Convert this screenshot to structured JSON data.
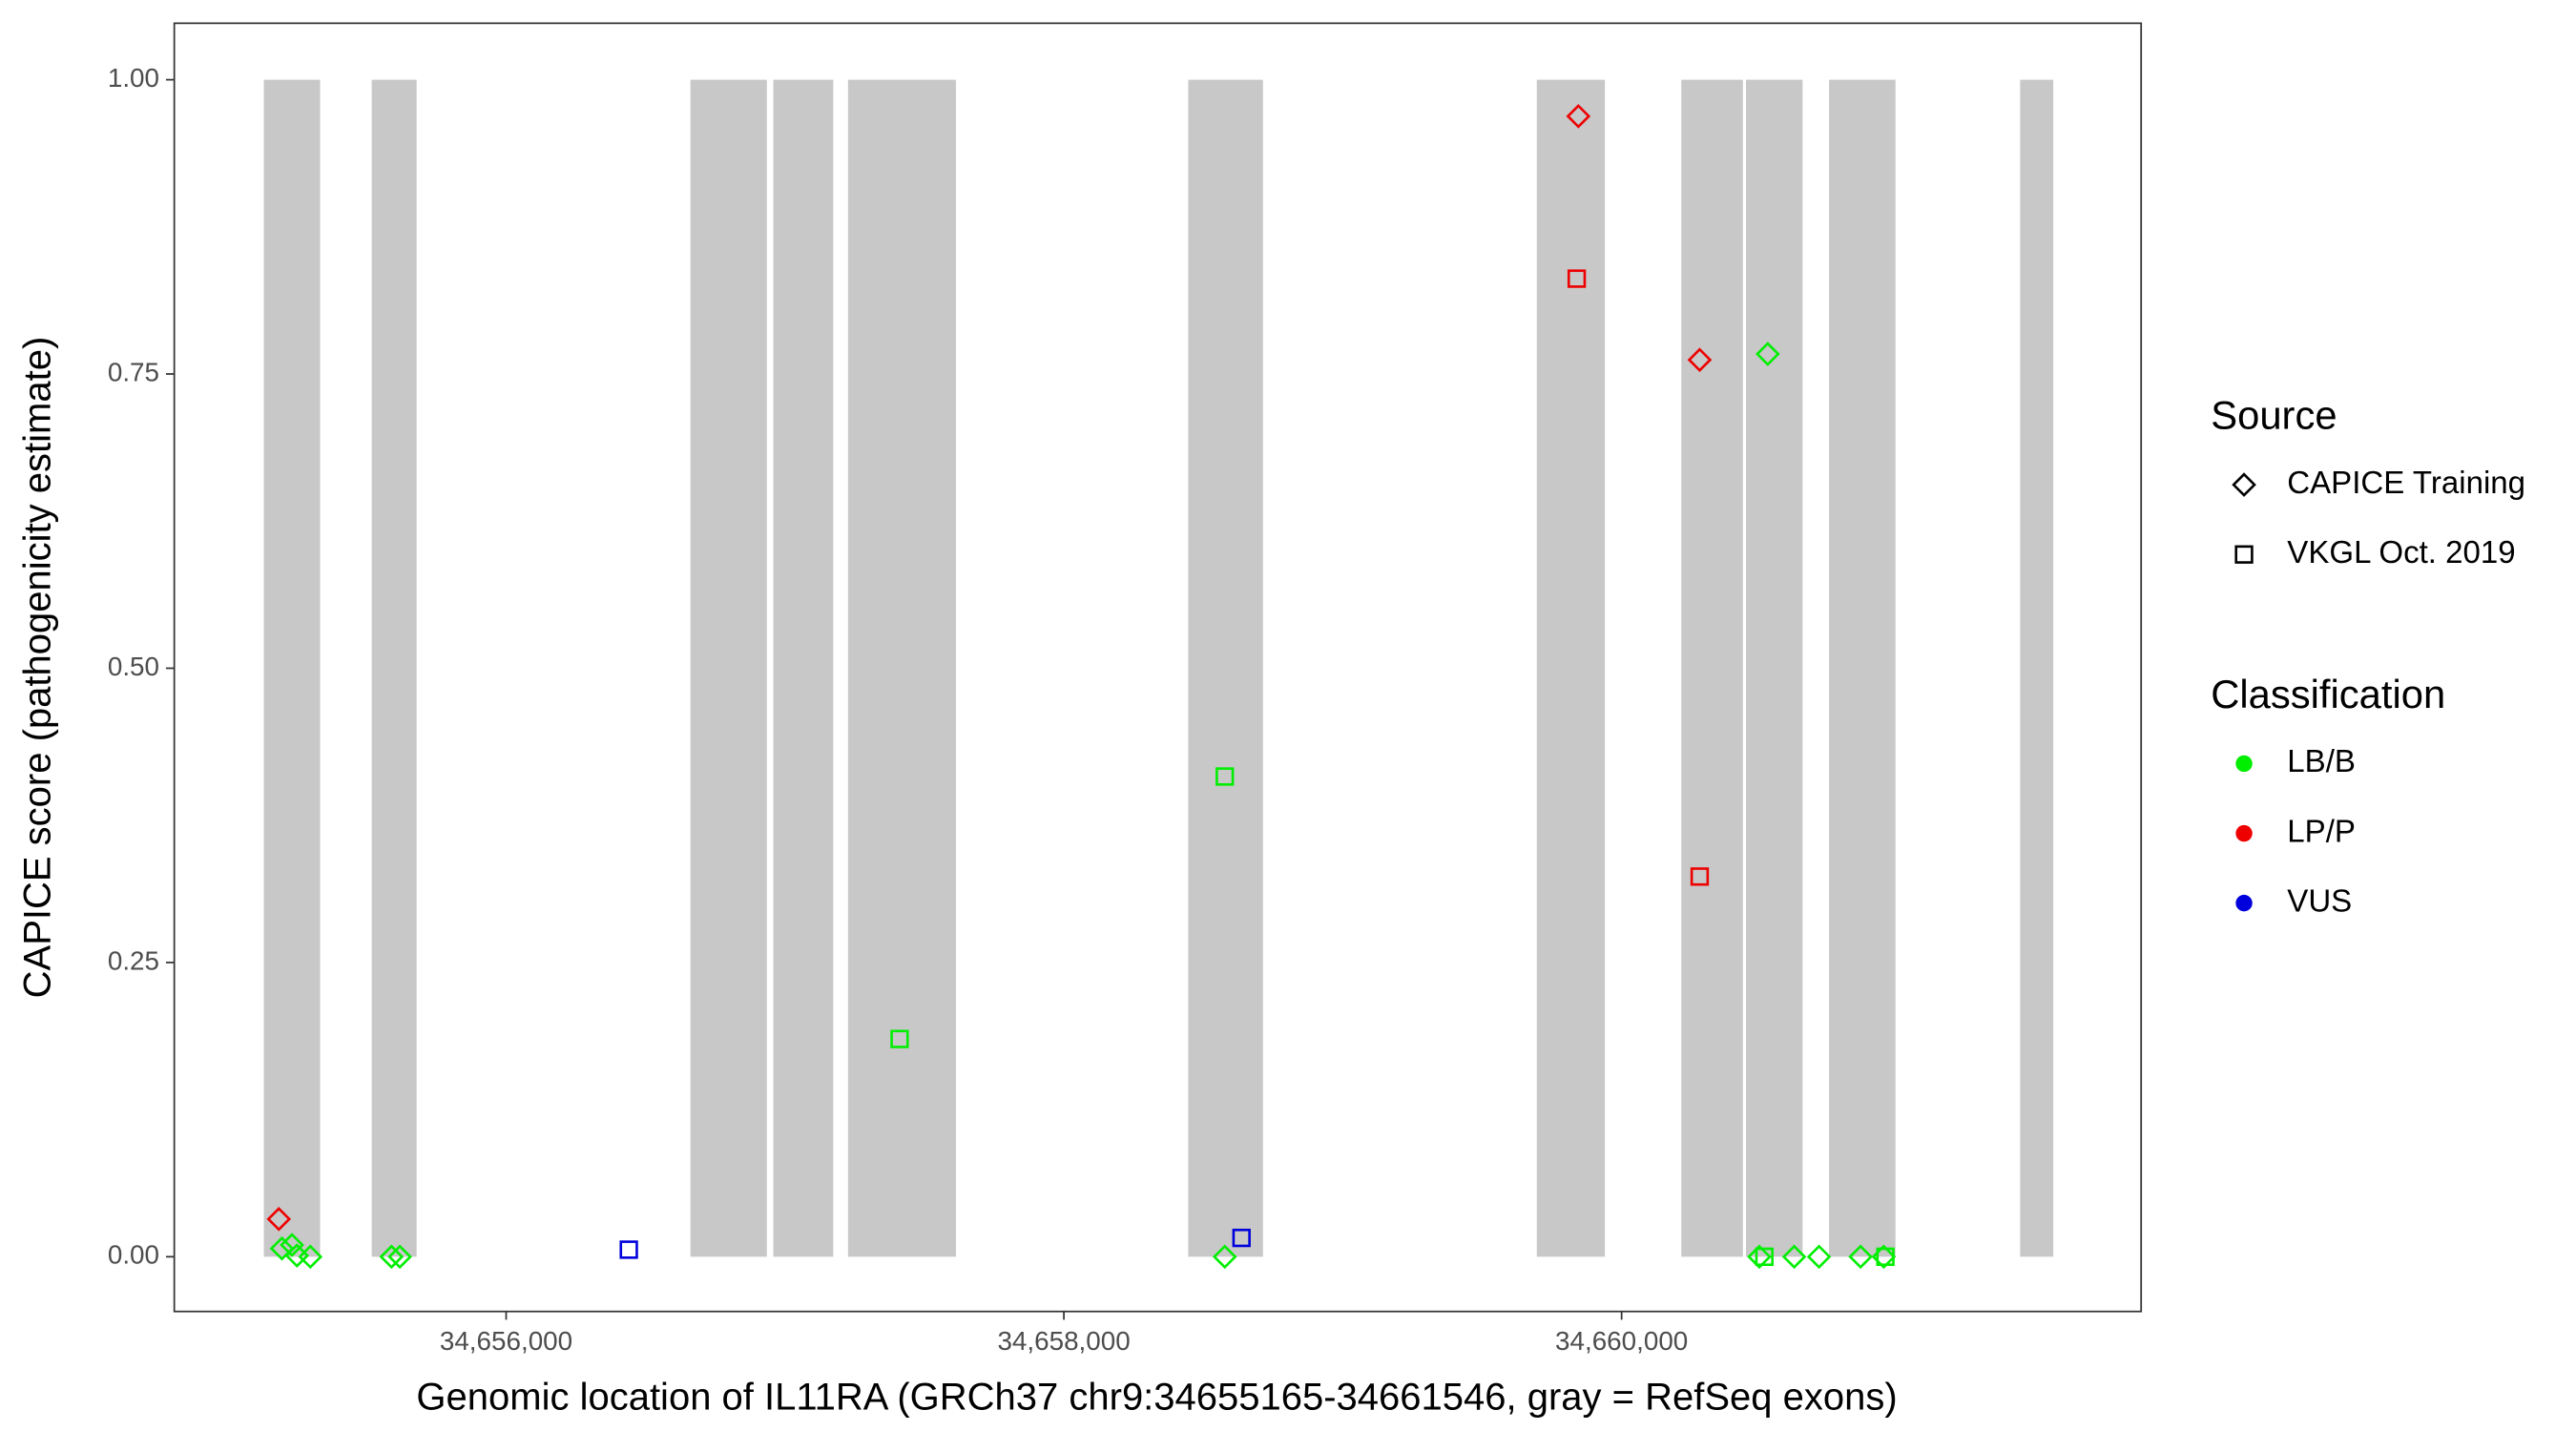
{
  "chart_data": {
    "type": "scatter",
    "x_label": "Genomic location of IL11RA (GRCh37 chr9:34655165-34661546, gray = RefSeq exons)",
    "y_label": "CAPICE score (pathogenicity estimate)",
    "xlim": [
      34654810,
      34661863
    ],
    "ylim": [
      -0.0465,
      1.048
    ],
    "xticks": [
      {
        "value": 34656000,
        "label": "34,656,000"
      },
      {
        "value": 34658000,
        "label": "34,658,000"
      },
      {
        "value": 34660000,
        "label": "34,660,000"
      }
    ],
    "yticks": [
      {
        "value": 0,
        "label": "0.00"
      },
      0.25,
      {
        "value": 0.5,
        "label": "0.50"
      },
      0.75,
      {
        "value": 1,
        "label": "1.00"
      }
    ],
    "exon_color": "#c8c8c8",
    "exons": {
      "start": [
        34655131,
        34655518,
        34656661,
        34656958,
        34657226,
        34658446,
        34659696,
        34660214,
        34660446,
        34660744,
        34661429
      ],
      "end": [
        34655333,
        34655679,
        34656935,
        34657173,
        34657613,
        34658714,
        34659940,
        34660435,
        34660649,
        34660982,
        34661548
      ],
      "bottom": 0,
      "top": 1
    },
    "source_legend": {
      "title": "Source",
      "items": [
        {
          "name": "CAPICE Training",
          "shape": "diamond"
        },
        {
          "name": "VKGL Oct. 2019",
          "shape": "square"
        }
      ]
    },
    "classification_legend": {
      "title": "Classification",
      "items": [
        {
          "name": "LB/B",
          "color": "#00ee00"
        },
        {
          "name": "LP/P",
          "color": "#ee0000"
        },
        {
          "name": "VUS",
          "color": "#0000dd"
        }
      ]
    },
    "points": {
      "x": [
        34655185,
        34655196,
        34655232,
        34655250,
        34655298,
        34655589,
        34655619,
        34658577,
        34659845,
        34660280,
        34660524,
        34660494,
        34660619,
        34660708,
        34660857,
        34660940,
        34656440,
        34657411,
        34658577,
        34658637,
        34659839,
        34660280,
        34660512,
        34660946
      ],
      "y": [
        0.032,
        0.007,
        0.01,
        0.001,
        0,
        0,
        0,
        0,
        0.969,
        0.762,
        0.767,
        0,
        0,
        0,
        0,
        0,
        0.006,
        0.185,
        0.408,
        0.016,
        0.831,
        0.323,
        0,
        0
      ],
      "source": [
        "CAPICE Training",
        "CAPICE Training",
        "CAPICE Training",
        "CAPICE Training",
        "CAPICE Training",
        "CAPICE Training",
        "CAPICE Training",
        "CAPICE Training",
        "CAPICE Training",
        "CAPICE Training",
        "CAPICE Training",
        "CAPICE Training",
        "CAPICE Training",
        "CAPICE Training",
        "CAPICE Training",
        "CAPICE Training",
        "VKGL Oct. 2019",
        "VKGL Oct. 2019",
        "VKGL Oct. 2019",
        "VKGL Oct. 2019",
        "VKGL Oct. 2019",
        "VKGL Oct. 2019",
        "VKGL Oct. 2019",
        "VKGL Oct. 2019"
      ],
      "classification": [
        "LP/P",
        "LB/B",
        "LB/B",
        "LB/B",
        "LB/B",
        "LB/B",
        "LB/B",
        "LB/B",
        "LP/P",
        "LP/P",
        "LB/B",
        "LB/B",
        "LB/B",
        "LB/B",
        "LB/B",
        "LB/B",
        "VUS",
        "LB/B",
        "LB/B",
        "VUS",
        "LP/P",
        "LP/P",
        "LB/B",
        "LB/B"
      ]
    }
  }
}
